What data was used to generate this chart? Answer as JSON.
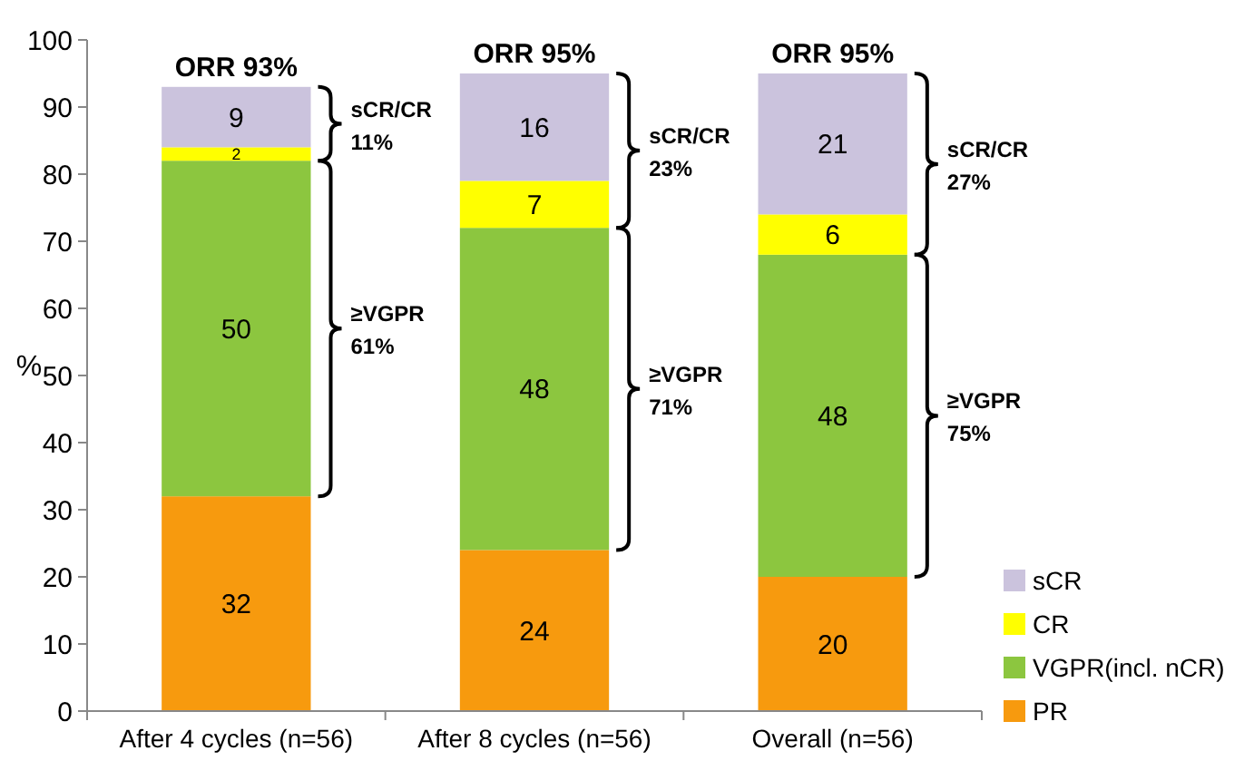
{
  "chart_data": {
    "type": "bar",
    "stacked": true,
    "ylabel": "%",
    "categories": [
      "After 4 cycles (n=56)",
      "After 8 cycles (n=56)",
      "Overall (n=56)"
    ],
    "series": [
      {
        "name": "PR",
        "color": "#f79a0e",
        "values": [
          32,
          24,
          20
        ]
      },
      {
        "name": "VGPR(incl. nCR)",
        "color": "#8cc63f",
        "values": [
          50,
          48,
          48
        ]
      },
      {
        "name": "CR",
        "color": "#ffff00",
        "values": [
          2,
          7,
          6
        ]
      },
      {
        "name": "sCR",
        "color": "#cbc3dd",
        "values": [
          9,
          16,
          21
        ]
      }
    ],
    "ylim": [
      0,
      100
    ],
    "yticks": [
      0,
      10,
      20,
      30,
      40,
      50,
      60,
      70,
      80,
      90,
      100
    ],
    "grid": false,
    "legend": "bottom right",
    "data_labels": true,
    "annotations": [
      {
        "text": "ORR 93%",
        "x": "After 4 cycles (n=56)",
        "y": 93
      },
      {
        "text": "ORR 95%",
        "x": "After 8 cycles (n=56)",
        "y": 95
      },
      {
        "text": "ORR 95%",
        "x": "Overall (n=56)",
        "y": 95
      },
      "sCR/CR\n11%",
      "≥VGPR\n61%",
      "sCR/CR\n23%",
      "≥VGPR\n71%",
      "sCR/CR\n27%",
      "≥VGPR\n75%"
    ]
  }
}
